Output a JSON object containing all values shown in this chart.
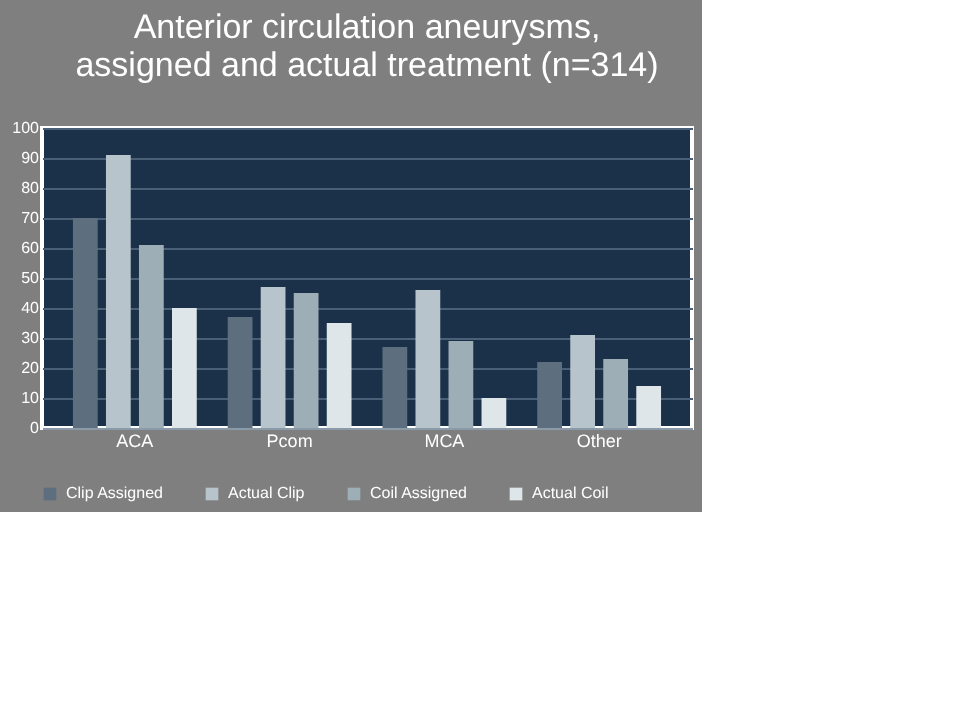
{
  "chart_data": {
    "type": "bar",
    "title": [
      "Anterior circulation aneurysms,",
      "assigned and actual treatment (n=314)"
    ],
    "categories": [
      "ACA",
      "Pcom",
      "MCA",
      "Other"
    ],
    "series": [
      {
        "name": "Clip Assigned",
        "color": "#5d6f7e",
        "values": [
          70,
          37,
          27,
          22
        ]
      },
      {
        "name": "Actual Clip",
        "color": "#b8c4cc",
        "values": [
          91,
          47,
          46,
          31
        ]
      },
      {
        "name": "Coil Assigned",
        "color": "#9eaeb6",
        "values": [
          61,
          45,
          29,
          23
        ]
      },
      {
        "name": "Actual Coil",
        "color": "#dfe6ea",
        "values": [
          40,
          35,
          10,
          14
        ]
      }
    ],
    "ylim": [
      0,
      100
    ],
    "yticks": [
      0,
      10,
      20,
      30,
      40,
      50,
      60,
      70,
      80,
      90,
      100
    ],
    "grid": "y",
    "legend": "bottom"
  }
}
